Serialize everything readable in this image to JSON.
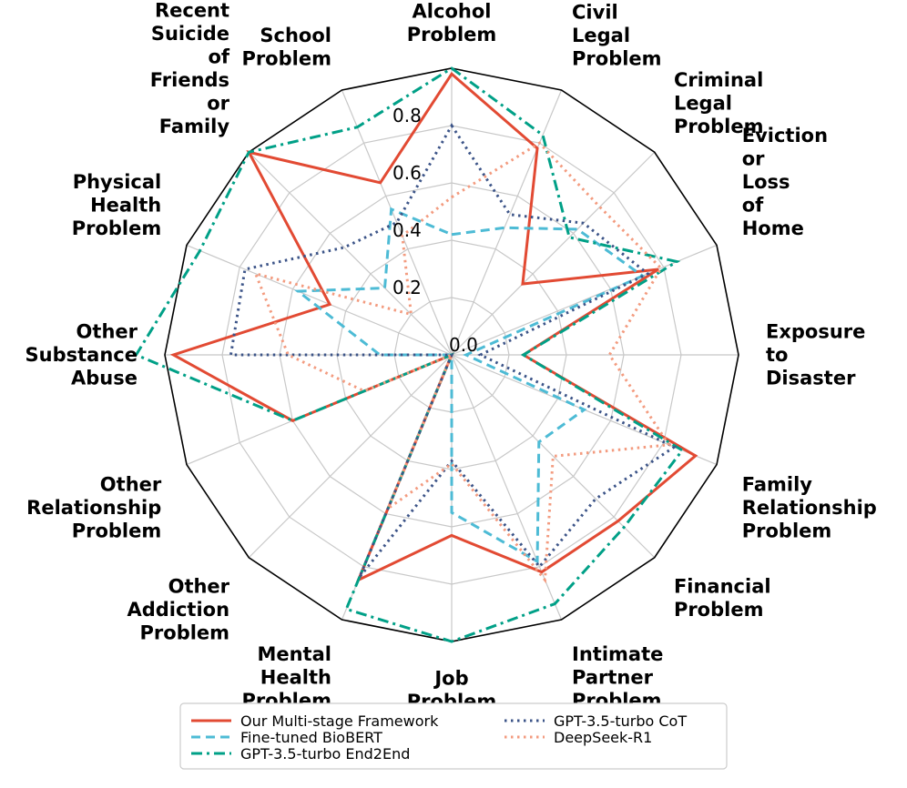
{
  "chart_data": {
    "type": "radar",
    "categories": [
      [
        "Alcohol",
        "Problem"
      ],
      [
        "Civil",
        "Legal",
        "Problem"
      ],
      [
        "Criminal",
        "Legal",
        "Problem"
      ],
      [
        "Eviction",
        "or",
        "Loss",
        "of",
        "Home"
      ],
      [
        "Exposure",
        "to",
        "Disaster"
      ],
      [
        "Family",
        "Relationship",
        "Problem"
      ],
      [
        "Financial",
        "Problem"
      ],
      [
        "Intimate",
        "Partner",
        "Problem"
      ],
      [
        "Job",
        "Problem"
      ],
      [
        "Mental",
        "Health",
        "Problem"
      ],
      [
        "Other",
        "Addiction",
        "Problem"
      ],
      [
        "Other",
        "Relationship",
        "Problem"
      ],
      [
        "Other",
        "Substance",
        "Abuse"
      ],
      [
        "Physical",
        "Health",
        "Problem"
      ],
      [
        "Recent",
        "Suicide",
        "of",
        "Friends",
        "or",
        "Family"
      ],
      [
        "School",
        "Problem"
      ]
    ],
    "rlim": [
      0,
      1.0
    ],
    "rticks": [
      "0.0",
      "0.2",
      "0.4",
      "0.6",
      "0.8"
    ],
    "rtick_values": [
      0.0,
      0.2,
      0.4,
      0.6,
      0.8
    ],
    "grid": true,
    "series": [
      {
        "name": "Our Multi-stage Framework",
        "color": "#e24a33",
        "dash": "solid",
        "values": [
          0.98,
          0.78,
          0.35,
          0.78,
          0.25,
          0.92,
          0.82,
          0.82,
          0.63,
          0.85,
          0.0,
          0.6,
          0.97,
          0.46,
          1.0,
          0.65
        ]
      },
      {
        "name": "Fine-tuned BioBERT",
        "color": "#4dbbd5",
        "dash": "dashed",
        "values": [
          0.42,
          0.48,
          0.62,
          0.72,
          0.05,
          0.5,
          0.43,
          0.78,
          0.55,
          0.0,
          0.0,
          0.0,
          0.25,
          0.58,
          0.33,
          0.55
        ]
      },
      {
        "name": "GPT-3.5-turbo End2End",
        "color": "#00a087",
        "dash": "dashdot",
        "values": [
          1.0,
          0.83,
          0.58,
          0.85,
          0.25,
          0.87,
          0.85,
          0.94,
          1.0,
          0.96,
          0.0,
          0.6,
          1.1,
          0.95,
          1.0,
          0.86
        ]
      },
      {
        "name": "GPT-3.5-turbo CoT",
        "color": "#3c5488",
        "dash": "dotted",
        "values": [
          0.8,
          0.53,
          0.65,
          0.74,
          0.1,
          0.84,
          0.71,
          0.8,
          0.37,
          0.84,
          0.0,
          0.0,
          0.77,
          0.78,
          0.53,
          0.5
        ]
      },
      {
        "name": "DeepSeek-R1",
        "color": "#f39b7f",
        "dash": "dotted",
        "values": [
          0.55,
          0.8,
          0.73,
          0.79,
          0.55,
          0.82,
          0.5,
          0.85,
          0.38,
          0.58,
          0.0,
          0.33,
          0.57,
          0.74,
          0.2,
          0.45
        ]
      }
    ],
    "legend_location": "bottom-center"
  }
}
